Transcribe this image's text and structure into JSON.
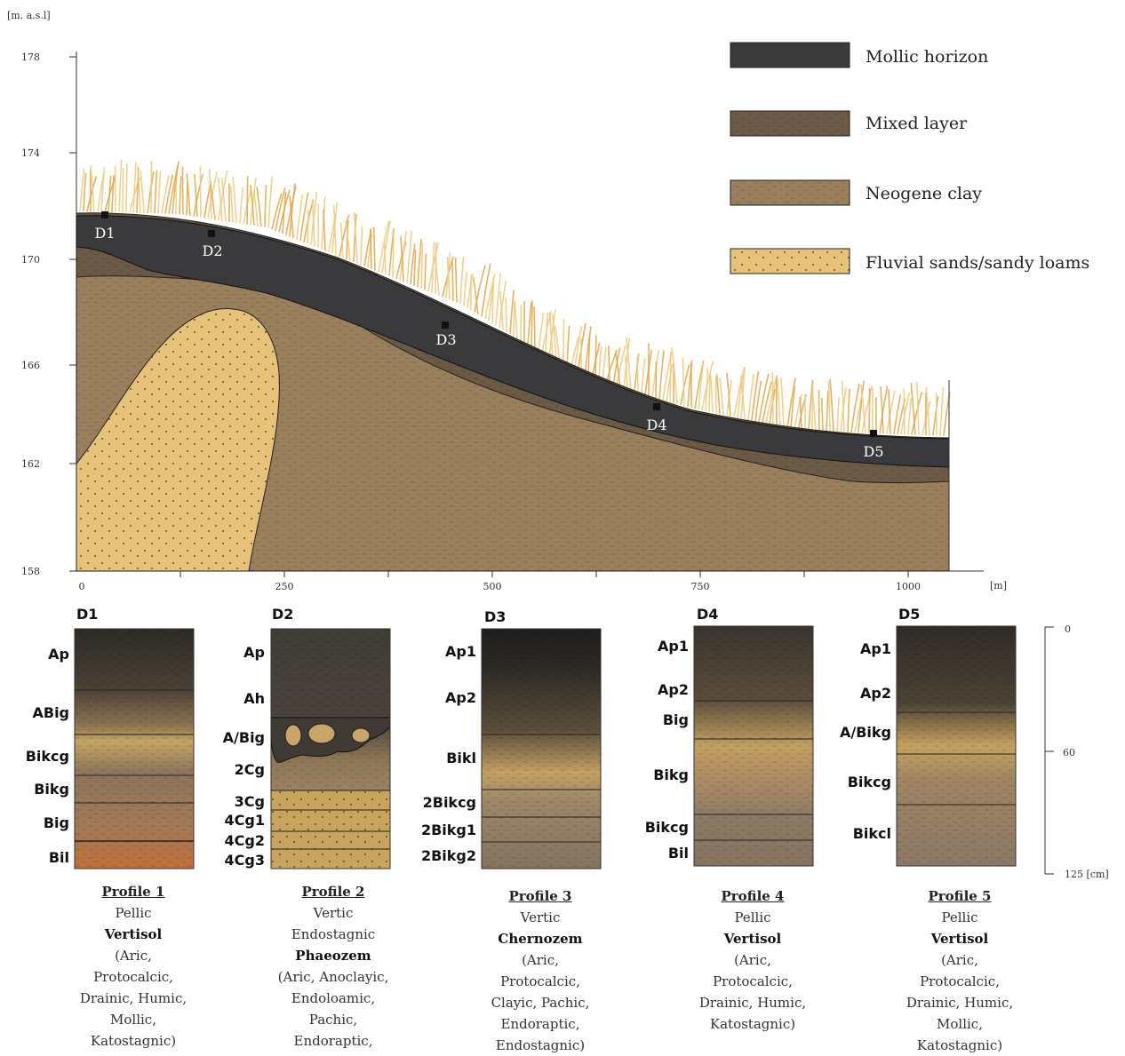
{
  "cross_section": {
    "y_unit": "[m. a.s.l]",
    "x_unit": "[m]",
    "y_ticks": [
      "178",
      "174",
      "170",
      "166",
      "162",
      "158"
    ],
    "x_ticks": [
      "0",
      "250",
      "500",
      "750",
      "1000"
    ],
    "sites": [
      "D1",
      "D2",
      "D3",
      "D4",
      "D5"
    ]
  },
  "legend": [
    {
      "label": "Mollic horizon",
      "color": "#3a3a3c"
    },
    {
      "label": "Mixed layer",
      "color": "#6b5a46"
    },
    {
      "label": "Neogene clay",
      "color": "#9a7f5c"
    },
    {
      "label": "Fluvial sands/sandy loams",
      "color": "#e7c27a"
    }
  ],
  "depth_scale": {
    "ticks": [
      "0",
      "60",
      "125 [cm]"
    ]
  },
  "profiles": [
    {
      "site": "D1",
      "horizons": [
        "Ap",
        "ABig",
        "Bikcg",
        "Bikg",
        "Big",
        "Bil"
      ],
      "title": "Profile 1",
      "caption_lines": [
        "Pellic",
        "Vertisol",
        "(Aric,",
        "Protocalcic,",
        "Drainic, Humic,",
        "Mollic,",
        "Katostagnic)"
      ],
      "bold_line": 1
    },
    {
      "site": "D2",
      "horizons": [
        "Ap",
        "Ah",
        "A/Big",
        "2Cg",
        "3Cg",
        "4Cg1",
        "4Cg2",
        "4Cg3"
      ],
      "title": "Profile 2",
      "caption_lines": [
        "Vertic",
        "Endostagnic",
        "Phaeozem",
        "(Aric, Anoclayic,",
        "Endoloamic,",
        "Pachic,",
        "Endoraptic,"
      ],
      "bold_line": 2
    },
    {
      "site": "D3",
      "horizons": [
        "Ap1",
        "Ap2",
        "Bikl",
        "2Bikcg",
        "2Bikg1",
        "2Bikg2"
      ],
      "title": "Profile 3",
      "caption_lines": [
        "Vertic",
        "Chernozem",
        "(Aric,",
        "Protocalcic,",
        "Clayic, Pachic,",
        "Endoraptic,",
        "Endostagnic)"
      ],
      "bold_line": 1
    },
    {
      "site": "D4",
      "horizons": [
        "Ap1",
        "Ap2",
        "Big",
        "Bikg",
        "Bikcg",
        "Bil"
      ],
      "title": "Profile 4",
      "caption_lines": [
        "Pellic",
        "Vertisol",
        "(Aric,",
        "Protocalcic,",
        "Drainic, Humic,",
        "Katostagnic)"
      ],
      "bold_line": 1
    },
    {
      "site": "D5",
      "horizons": [
        "Ap1",
        "Ap2",
        "A/Bikg",
        "Bikcg",
        "Bikcl"
      ],
      "title": "Profile 5",
      "caption_lines": [
        "Pellic",
        "Vertisol",
        "(Aric,",
        "Protocalcic,",
        "Drainic, Humic,",
        "Mollic,",
        "Katostagnic)"
      ],
      "bold_line": 1
    }
  ]
}
